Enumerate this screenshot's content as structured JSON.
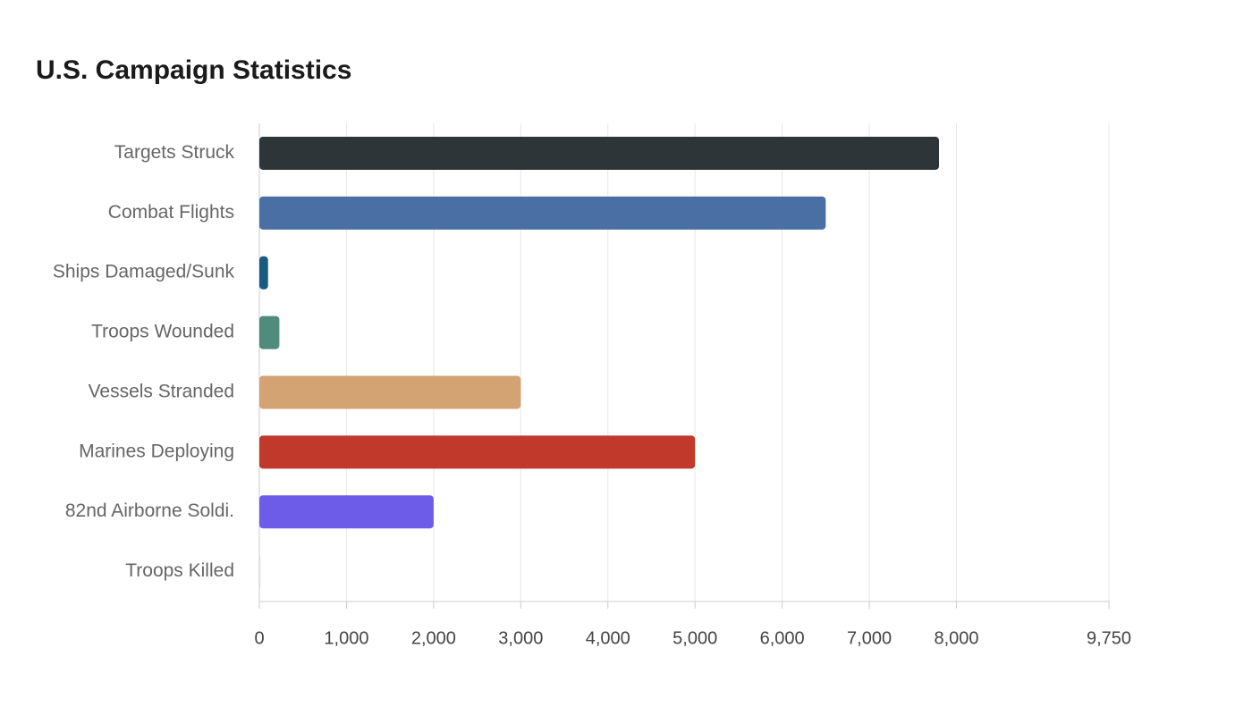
{
  "chart_data": {
    "type": "hbar",
    "title": "U.S. Campaign Statistics",
    "categories": [
      "Targets Struck",
      "Combat Flights",
      "Ships Damaged/Sunk",
      "Troops Wounded",
      "Vessels Stranded",
      "Marines Deploying",
      "82nd Airborne Soldi.",
      "Troops Killed"
    ],
    "values": [
      7800,
      6500,
      100,
      230,
      3000,
      5000,
      2000,
      13
    ],
    "colors": [
      "#2e3538",
      "#4a6fa5",
      "#1a5a80",
      "#4f8c7c",
      "#d4a373",
      "#c0392b",
      "#6c5ce7",
      "#dddddd"
    ],
    "xlim": [
      0,
      9750
    ],
    "xticks": [
      0,
      {
        "value": 1000,
        "label": "1,000"
      },
      {
        "value": 2000,
        "label": "2,000"
      },
      {
        "value": 3000,
        "label": "3,000"
      },
      {
        "value": 4000,
        "label": "4,000"
      },
      {
        "value": 5000,
        "label": "5,000"
      },
      {
        "value": 6000,
        "label": "6,000"
      },
      {
        "value": 7000,
        "label": "7,000"
      },
      {
        "value": 8000,
        "label": "8,000"
      },
      {
        "value": 9750,
        "label": "9,750"
      }
    ],
    "grid": true
  }
}
